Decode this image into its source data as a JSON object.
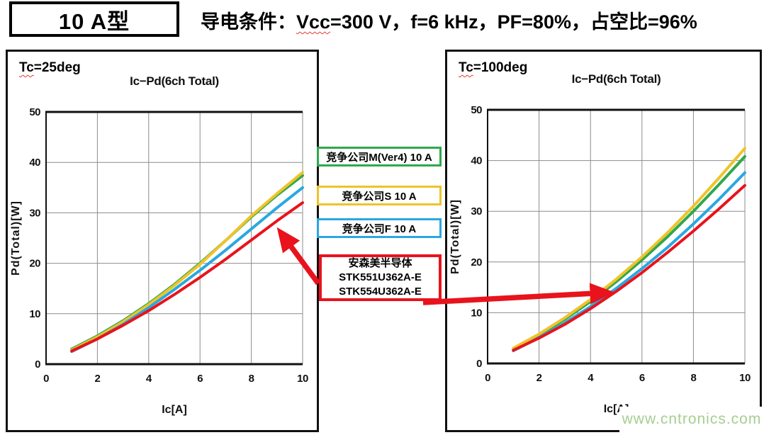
{
  "header": {
    "type_label": "10 A型",
    "condition": {
      "prefix": "导电条件：",
      "vcc": "Vcc",
      "rest": "=300 V，f=6 kHz，PF=80%，占空比=96%"
    }
  },
  "colors": {
    "competitor_m_green": "#2FA84C",
    "competitor_s_yellow": "#EFC32A",
    "competitor_f_blue": "#29A8E0",
    "onsemi_red": "#E8131C",
    "grid_gray": "#8c8c8c",
    "watermark_green": "#A6CE91"
  },
  "legend": {
    "competitors": [
      {
        "label": "竞争公司M(Ver4) 10 A",
        "color": "#2FA84C"
      },
      {
        "label": "竞争公司S 10 A",
        "color": "#EFC32A"
      },
      {
        "label": "竞争公司F 10 A",
        "color": "#29A8E0"
      }
    ],
    "onsemi": {
      "line1": "安森美半导体",
      "line2": "STK551U362A-E",
      "line3": "STK554U362A-E",
      "color": "#E8131C"
    }
  },
  "watermark": "www.cntronics.com",
  "chart_data": [
    {
      "type": "line",
      "tc_label": {
        "word": "Tc",
        "value": "=25deg"
      },
      "title": "Ic−Pd(6ch Total)",
      "xlabel": "Ic[A]",
      "ylabel": "Pd(Total)[W]",
      "xlim": [
        0,
        10
      ],
      "ylim": [
        0,
        50
      ],
      "xticks": [
        0,
        2,
        4,
        6,
        8,
        10
      ],
      "yticks": [
        0,
        10,
        20,
        30,
        40,
        50
      ],
      "grid": true,
      "x": [
        1,
        2,
        3,
        4,
        5,
        6,
        7,
        8,
        9,
        10
      ],
      "series": [
        {
          "name": "竞争公司M(Ver4) 10 A",
          "color": "#2FA84C",
          "values": [
            3.0,
            5.6,
            8.6,
            12.0,
            15.8,
            20.0,
            24.5,
            29.2,
            33.5,
            37.4
          ]
        },
        {
          "name": "竞争公司S 10 A",
          "color": "#EFC32A",
          "values": [
            2.8,
            5.4,
            8.4,
            11.8,
            15.6,
            19.8,
            24.5,
            29.4,
            33.8,
            38.0
          ]
        },
        {
          "name": "竞争公司F 10 A",
          "color": "#29A8E0",
          "values": [
            2.5,
            5.0,
            7.9,
            11.2,
            14.8,
            18.6,
            22.6,
            26.8,
            31.0,
            35.0
          ]
        },
        {
          "name": "安森美半导体 STK551U362A-E / STK554U362A-E",
          "color": "#E8131C",
          "values": [
            2.6,
            5.0,
            7.7,
            10.6,
            13.8,
            17.2,
            20.8,
            24.6,
            28.4,
            32.0
          ]
        }
      ]
    },
    {
      "type": "line",
      "tc_label": {
        "word": "Tc",
        "value": "=100deg"
      },
      "title": "Ic−Pd(6ch Total)",
      "xlabel": "Ic[A]",
      "ylabel": "Pd(Total)[W]",
      "xlim": [
        0,
        10
      ],
      "ylim": [
        0,
        50
      ],
      "xticks": [
        0,
        2,
        4,
        6,
        8,
        10
      ],
      "yticks": [
        0,
        10,
        20,
        30,
        40,
        50
      ],
      "grid": true,
      "x": [
        1,
        2,
        3,
        4,
        5,
        6,
        7,
        8,
        9,
        10
      ],
      "series": [
        {
          "name": "竞争公司M(Ver4) 10 A",
          "color": "#2FA84C",
          "values": [
            2.9,
            5.6,
            8.7,
            12.2,
            16.1,
            20.4,
            25.0,
            30.0,
            35.3,
            40.8
          ]
        },
        {
          "name": "竞争公司S 10 A",
          "color": "#EFC32A",
          "values": [
            3.0,
            5.8,
            9.0,
            12.6,
            16.6,
            21.0,
            25.8,
            31.0,
            36.6,
            42.4
          ]
        },
        {
          "name": "竞争公司F 10 A",
          "color": "#29A8E0",
          "values": [
            2.5,
            5.1,
            8.0,
            11.2,
            14.8,
            18.7,
            22.9,
            27.5,
            32.4,
            37.6
          ]
        },
        {
          "name": "安森美半导体 STK551U362A-E / STK554U362A-E",
          "color": "#E8131C",
          "values": [
            2.6,
            5.0,
            7.7,
            10.8,
            14.2,
            17.9,
            21.9,
            26.1,
            30.5,
            35.1
          ]
        }
      ]
    }
  ]
}
